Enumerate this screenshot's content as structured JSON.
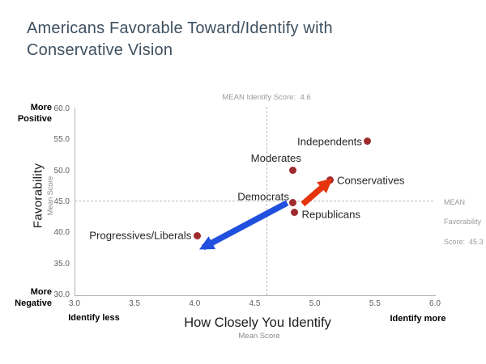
{
  "slide": {
    "title": "Americans Favorable Toward/Identify with Conservative Vision"
  },
  "chart_data": {
    "type": "scatter",
    "title": "Americans Favorable Toward/Identify with Conservative Vision",
    "xlabel": "How Closely You Identify",
    "xlabel_sub": "Mean Score",
    "ylabel": "Favorability",
    "ylabel_sub": "Mean Score",
    "xlim": [
      3.0,
      6.0
    ],
    "ylim": [
      30.0,
      60.0
    ],
    "x_ticks": [
      3.0,
      3.5,
      4.0,
      4.5,
      5.0,
      5.5,
      6.0
    ],
    "y_ticks": [
      60.0,
      55.0,
      50.0,
      45.0,
      40.0,
      35.0,
      30.0
    ],
    "grid": false,
    "legend": false,
    "point_color": "#9e2b2e",
    "points": [
      {
        "label": "Independents",
        "x": 5.44,
        "y": 54.8,
        "anchor": "left"
      },
      {
        "label": "Moderates",
        "x": 4.82,
        "y": 50.2,
        "anchor": "above"
      },
      {
        "label": "Conservatives",
        "x": 5.13,
        "y": 48.6,
        "anchor": "right"
      },
      {
        "label": "Democrats",
        "x": 4.82,
        "y": 44.9,
        "anchor": "above-left"
      },
      {
        "label": "Republicans",
        "x": 4.83,
        "y": 43.4,
        "anchor": "right-down"
      },
      {
        "label": "Progressives/Liberals",
        "x": 4.02,
        "y": 39.6,
        "anchor": "left"
      }
    ],
    "mean_lines": {
      "identify": {
        "value": 4.6,
        "label": "MEAN Identify Score:  4.6"
      },
      "favorability": {
        "value": 45.3,
        "label_lines": [
          "MEAN",
          "Favorability",
          "Score:  45.3"
        ]
      }
    },
    "arrows": [
      {
        "name": "shift-toward-conservatives",
        "color": "#e5340e",
        "from": {
          "x": 4.9,
          "y": 44.7
        },
        "to": {
          "x": 5.12,
          "y": 48.4
        }
      },
      {
        "name": "shift-toward-progressives",
        "color": "#2050dd",
        "from": {
          "x": 4.77,
          "y": 44.9
        },
        "to": {
          "x": 4.07,
          "y": 37.7
        }
      }
    ],
    "annotations": {
      "more_positive": {
        "lines": [
          "More",
          "Positive"
        ],
        "color": "#a8401d"
      },
      "more_negative": {
        "lines": [
          "More",
          "Negative"
        ],
        "color": "#2e5fa8"
      },
      "identify_less": {
        "text": "Identify less",
        "color": "#2e5fa8"
      },
      "identify_more": {
        "text": "Identify more",
        "color": "#a8401d"
      }
    }
  }
}
